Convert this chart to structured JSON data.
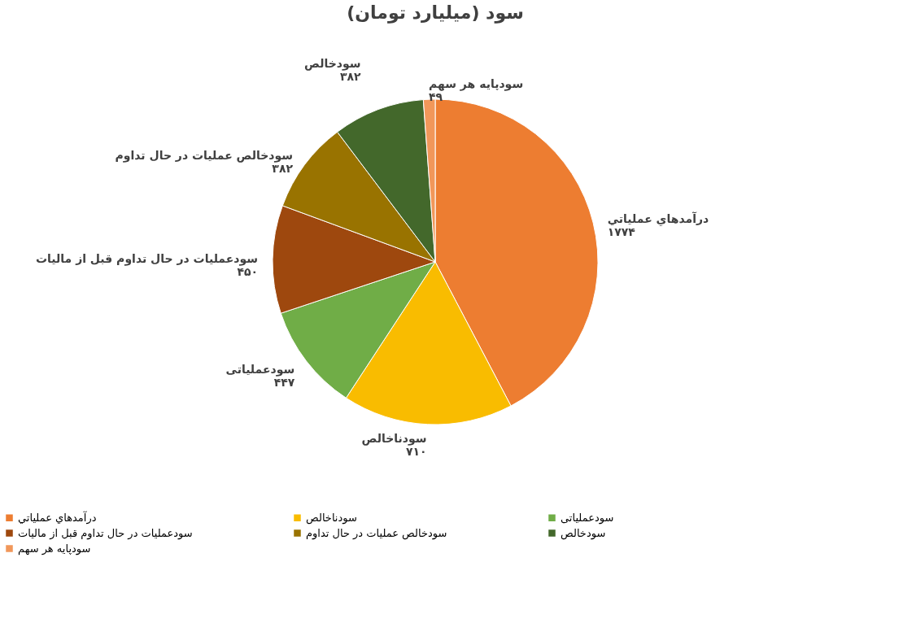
{
  "chart_data": {
    "type": "pie",
    "title": "سود (میلیارد تومان)",
    "categories": [
      "درآمدهاي عملياتي",
      "سودناخالص",
      "سودعملیاتی",
      "سودعملیات در حال تداوم قبل از مالیات",
      "سودخالص عملیات در حال تداوم",
      "سودخالص",
      "سودپایه هر سهم"
    ],
    "values": [
      1774,
      710,
      447,
      450,
      382,
      382,
      49
    ],
    "value_labels": [
      "۱۷۷۴",
      "۷۱۰",
      "۴۴۷",
      "۴۵۰",
      "۳۸۲",
      "۳۸۲",
      "۴۹"
    ],
    "colors": [
      "#ed7d31",
      "#f9bc00",
      "#70ad47",
      "#9e480e",
      "#997300",
      "#43682b",
      "#f1975a"
    ],
    "legend": "bottom"
  }
}
